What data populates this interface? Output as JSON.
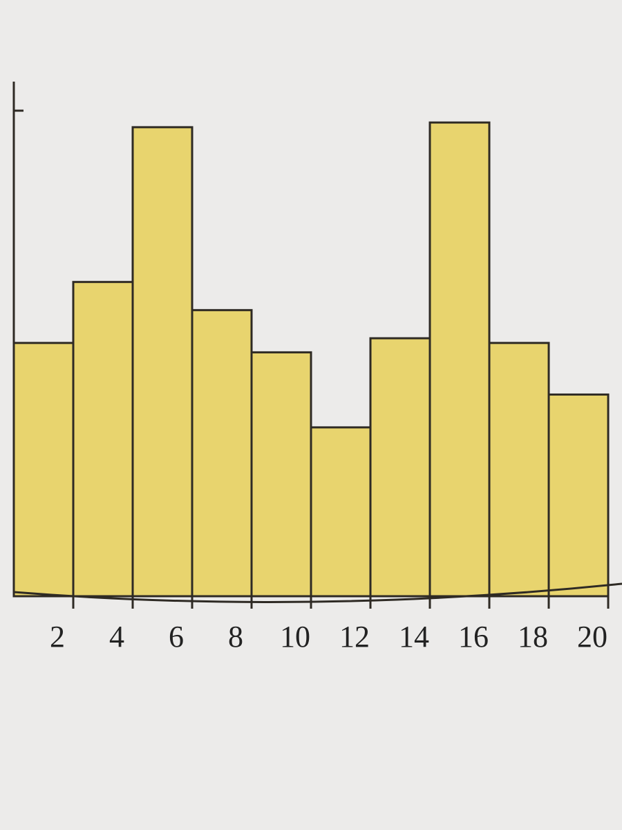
{
  "chart_data": {
    "type": "bar",
    "categories": [
      "2",
      "4",
      "6",
      "8",
      "10",
      "12",
      "14",
      "16",
      "18",
      "20"
    ],
    "values": [
      5.4,
      6.7,
      10.0,
      6.1,
      5.2,
      3.6,
      5.5,
      10.1,
      5.4,
      4.3
    ],
    "xlabel": "",
    "ylabel": "",
    "ylim": [
      0,
      10.5
    ],
    "grid": false,
    "colors": {
      "bar_fill": "#e8d46e",
      "bar_edge": "#2e2a24"
    }
  }
}
